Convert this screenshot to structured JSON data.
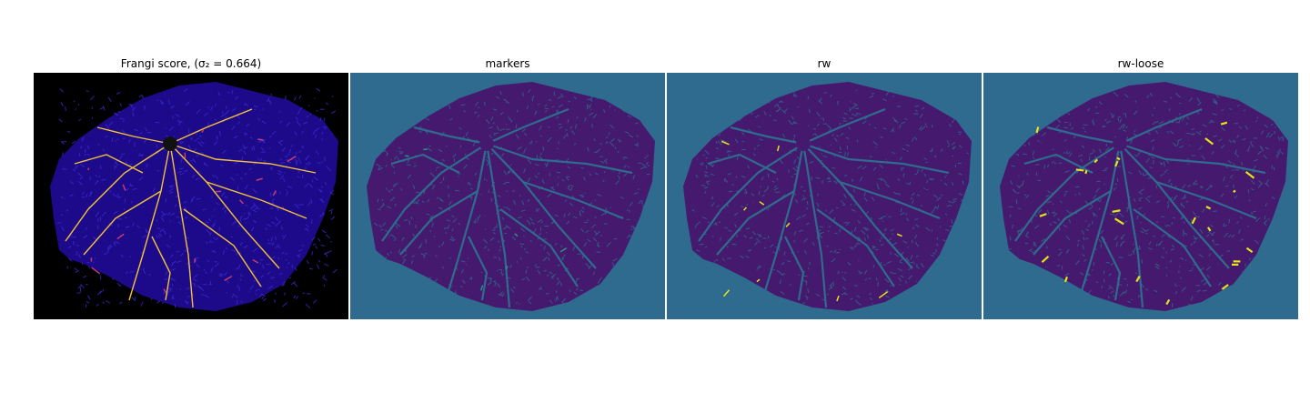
{
  "figure": {
    "panels": [
      {
        "title": "Frangi score, (σ₂ = 0.664)",
        "colormap": "plasma",
        "background": "#000000",
        "blob": "#1d0a8a",
        "vein": "#f2c23a",
        "vein_alt": "#c23d6e"
      },
      {
        "title": "markers",
        "colormap": "viridis",
        "background": "#2f6b8e",
        "blob": "#451a6e",
        "vein": "#2f6b8e",
        "vein_alt": "#2b9585"
      },
      {
        "title": "rw",
        "colormap": "viridis",
        "background": "#2f6b8e",
        "blob": "#451a6e",
        "vein": "#2f6b8e",
        "vein_alt": "#e5e419"
      },
      {
        "title": "rw-loose",
        "colormap": "viridis",
        "background": "#2f6b8e",
        "blob": "#451a6e",
        "vein": "#2f6b8e",
        "vein_alt": "#e5e419"
      }
    ]
  }
}
